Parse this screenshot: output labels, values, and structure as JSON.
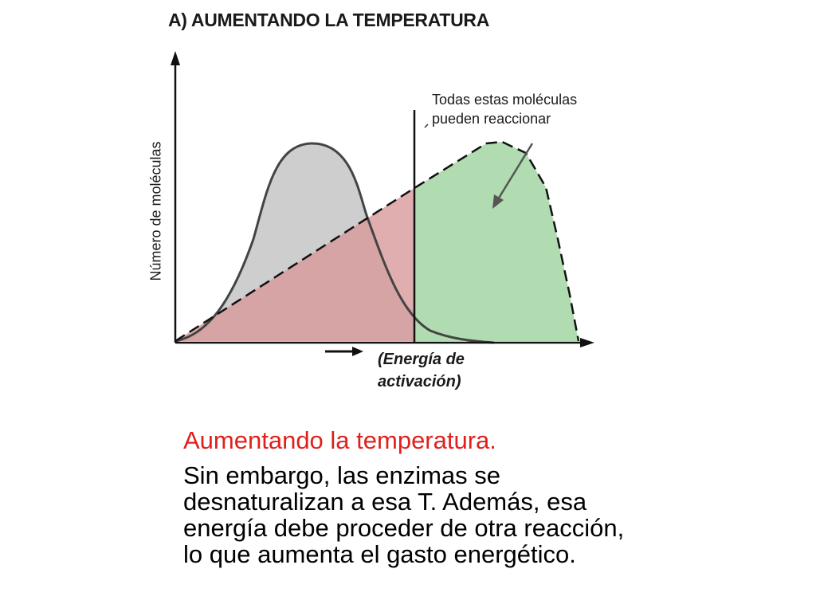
{
  "diagram": {
    "title": "A) AUMENTANDO LA TEMPERATURA",
    "y_axis_label": "Número de moléculas",
    "x_axis_label_line1": "(Energía de",
    "x_axis_label_line2": "activación)",
    "annotation_line1": "Todas estas moléculas",
    "annotation_line2": "pueden reaccionar",
    "colors": {
      "low_temp_curve_fill": "#c9c9c9",
      "high_temp_below_threshold": "#d89a9a",
      "high_temp_above_threshold": "#a8d8a8",
      "axis": "#111111"
    }
  },
  "caption": {
    "heading": "Aumentando la temperatura.",
    "body": "Sin embargo, las enzimas se desnaturalizan a esa T. Además, esa energía debe proceder de otra reacción, lo que aumenta el gasto energético."
  }
}
